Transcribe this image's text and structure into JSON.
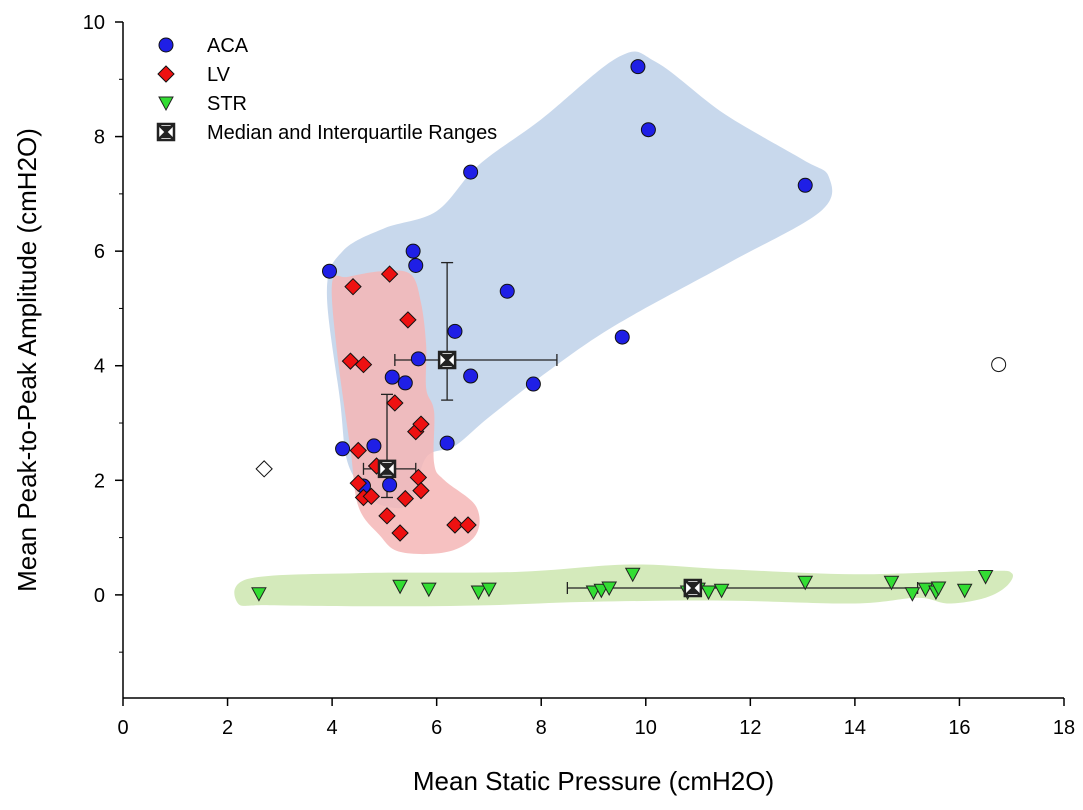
{
  "chart_data": {
    "type": "scatter",
    "xlabel": "Mean Static Pressure (cmH2O)",
    "ylabel": "Mean Peak-to-Peak Amplitude (cmH2O)",
    "xlim": [
      0,
      18
    ],
    "ylim": [
      -1.8,
      10
    ],
    "x_ticks": [
      0,
      2,
      4,
      6,
      8,
      10,
      12,
      14,
      16,
      18
    ],
    "y_ticks": [
      0,
      2,
      4,
      6,
      8,
      10
    ],
    "grid": false,
    "legend_position": "top-left",
    "series": [
      {
        "name": "ACA",
        "marker": "circle",
        "color": "#1f1fe6",
        "region_color": "#c8d8ec",
        "points": [
          [
            3.95,
            5.65
          ],
          [
            4.2,
            2.55
          ],
          [
            4.6,
            1.9
          ],
          [
            4.8,
            2.6
          ],
          [
            5.1,
            1.92
          ],
          [
            5.15,
            3.8
          ],
          [
            5.4,
            3.7
          ],
          [
            5.55,
            6.0
          ],
          [
            5.6,
            5.75
          ],
          [
            5.65,
            4.12
          ],
          [
            6.2,
            2.65
          ],
          [
            6.35,
            4.6
          ],
          [
            6.65,
            3.82
          ],
          [
            6.65,
            7.38
          ],
          [
            7.35,
            5.3
          ],
          [
            7.85,
            3.68
          ],
          [
            9.55,
            4.5
          ],
          [
            9.85,
            9.22
          ],
          [
            10.05,
            8.12
          ],
          [
            13.05,
            7.15
          ]
        ],
        "median": [
          6.2,
          4.1
        ],
        "x_iqr": [
          5.2,
          8.3
        ],
        "y_iqr": [
          3.4,
          5.8
        ]
      },
      {
        "name": "LV",
        "marker": "diamond",
        "color": "#ee1111",
        "region_color": "#f4b6b6",
        "points": [
          [
            4.4,
            5.38
          ],
          [
            4.35,
            4.08
          ],
          [
            4.6,
            4.02
          ],
          [
            4.5,
            2.52
          ],
          [
            4.5,
            1.95
          ],
          [
            4.6,
            1.7
          ],
          [
            4.75,
            1.72
          ],
          [
            4.85,
            2.25
          ],
          [
            5.05,
            1.38
          ],
          [
            5.1,
            5.6
          ],
          [
            5.2,
            3.35
          ],
          [
            5.3,
            1.08
          ],
          [
            5.4,
            1.68
          ],
          [
            5.45,
            4.8
          ],
          [
            5.6,
            2.85
          ],
          [
            5.65,
            2.05
          ],
          [
            5.7,
            2.98
          ],
          [
            5.7,
            1.82
          ],
          [
            6.35,
            1.22
          ],
          [
            6.6,
            1.22
          ]
        ],
        "median": [
          5.05,
          2.2
        ],
        "x_iqr": [
          4.6,
          5.6
        ],
        "y_iqr": [
          1.7,
          3.5
        ]
      },
      {
        "name": "STR",
        "marker": "triangle-down",
        "color": "#33dd33",
        "region_color": "#d4eabb",
        "points": [
          [
            2.6,
            0.02
          ],
          [
            5.3,
            0.15
          ],
          [
            5.85,
            0.1
          ],
          [
            6.8,
            0.05
          ],
          [
            7.0,
            0.1
          ],
          [
            9.0,
            0.05
          ],
          [
            9.15,
            0.08
          ],
          [
            9.3,
            0.12
          ],
          [
            9.75,
            0.36
          ],
          [
            10.8,
            0.05
          ],
          [
            11.0,
            0.1
          ],
          [
            11.2,
            0.05
          ],
          [
            11.45,
            0.08
          ],
          [
            13.05,
            0.22
          ],
          [
            14.7,
            0.22
          ],
          [
            15.1,
            0.02
          ],
          [
            15.35,
            0.1
          ],
          [
            15.55,
            0.05
          ],
          [
            15.6,
            0.12
          ],
          [
            16.1,
            0.08
          ],
          [
            16.5,
            0.32
          ]
        ],
        "median": [
          10.9,
          0.12
        ],
        "x_iqr": [
          8.5,
          15.2
        ],
        "y_iqr": [
          0.05,
          0.2
        ]
      }
    ],
    "outliers": [
      {
        "series": "ACA",
        "marker": "circle",
        "point": [
          16.75,
          4.02
        ]
      },
      {
        "series": "LV",
        "marker": "diamond",
        "point": [
          2.7,
          2.2
        ]
      }
    ],
    "legend": [
      {
        "label": "ACA",
        "marker": "circle",
        "color": "#1f1fe6"
      },
      {
        "label": "LV",
        "marker": "diamond",
        "color": "#ee1111"
      },
      {
        "label": "STR",
        "marker": "triangle-down",
        "color": "#33dd33"
      },
      {
        "label": "Median and Interquartile Ranges",
        "marker": "median-box",
        "color": "#222222"
      }
    ],
    "regions": {
      "ACA": [
        [
          4.3,
          2.3
        ],
        [
          4.15,
          3.4
        ],
        [
          3.9,
          5.3
        ],
        [
          4.2,
          6.0
        ],
        [
          5.0,
          6.4
        ],
        [
          6.0,
          6.7
        ],
        [
          6.8,
          7.5
        ],
        [
          8.0,
          8.3
        ],
        [
          9.5,
          9.4
        ],
        [
          10.2,
          9.3
        ],
        [
          11.5,
          8.4
        ],
        [
          13.0,
          7.6
        ],
        [
          13.5,
          7.3
        ],
        [
          13.35,
          6.7
        ],
        [
          11.6,
          5.8
        ],
        [
          9.5,
          4.75
        ],
        [
          8.2,
          3.95
        ],
        [
          7.0,
          3.1
        ],
        [
          6.35,
          2.6
        ],
        [
          5.8,
          2.4
        ],
        [
          5.5,
          1.6
        ],
        [
          5.0,
          1.55
        ],
        [
          4.7,
          1.75
        ]
      ],
      "LV": [
        [
          4.0,
          5.45
        ],
        [
          4.1,
          4.2
        ],
        [
          4.35,
          2.55
        ],
        [
          4.5,
          1.55
        ],
        [
          4.9,
          1.05
        ],
        [
          5.3,
          0.75
        ],
        [
          6.2,
          0.75
        ],
        [
          6.75,
          1.05
        ],
        [
          6.75,
          1.55
        ],
        [
          6.15,
          2.0
        ],
        [
          5.95,
          2.3
        ],
        [
          5.95,
          3.2
        ],
        [
          5.8,
          3.6
        ],
        [
          5.8,
          4.35
        ],
        [
          5.7,
          5.1
        ],
        [
          5.5,
          5.6
        ],
        [
          4.95,
          5.65
        ],
        [
          4.3,
          5.55
        ]
      ],
      "STR": [
        [
          2.2,
          -0.15
        ],
        [
          2.4,
          0.28
        ],
        [
          4.5,
          0.38
        ],
        [
          7.5,
          0.4
        ],
        [
          9.7,
          0.53
        ],
        [
          11.5,
          0.45
        ],
        [
          14.0,
          0.36
        ],
        [
          16.5,
          0.42
        ],
        [
          17.0,
          0.38
        ],
        [
          16.9,
          0.15
        ],
        [
          16.5,
          -0.05
        ],
        [
          15.8,
          -0.15
        ],
        [
          15.2,
          -0.05
        ],
        [
          14.0,
          -0.15
        ],
        [
          11.5,
          -0.1
        ],
        [
          9.0,
          -0.12
        ],
        [
          7.0,
          -0.18
        ],
        [
          5.0,
          -0.2
        ],
        [
          2.8,
          -0.18
        ]
      ]
    }
  }
}
